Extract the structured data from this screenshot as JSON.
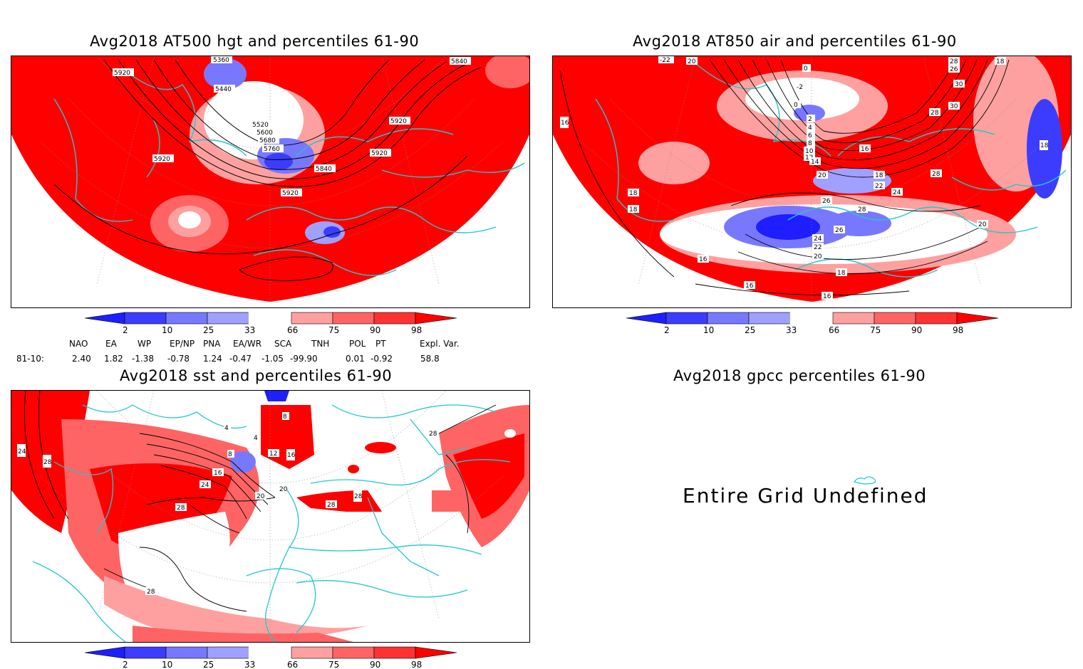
{
  "panels": {
    "hgt": {
      "title": "Avg2018 AT500 hgt and percentiles 61-90",
      "contour_labels": [
        "5360",
        "5920",
        "5440",
        "5520",
        "5600",
        "5680",
        "5760",
        "5920",
        "5920",
        "5840",
        "5920",
        "5840",
        "5920"
      ]
    },
    "air": {
      "title": "Avg2018 AT850 air and percentiles 61-90",
      "contour_labels": [
        "20",
        "-22",
        "0",
        "-2",
        "0",
        "2",
        "4",
        "6",
        "8",
        "10",
        "12",
        "14",
        "16",
        "18",
        "20",
        "22",
        "24",
        "26",
        "28",
        "28",
        "26",
        "24",
        "22",
        "20",
        "18",
        "16",
        "16",
        "16",
        "18",
        "18",
        "16",
        "18",
        "20",
        "28",
        "30",
        "30",
        "26",
        "28",
        "18"
      ]
    },
    "sst": {
      "title": "Avg2018 sst and percentiles 61-90",
      "contour_labels": [
        "24",
        "28",
        "8",
        "4",
        "4",
        "8",
        "12",
        "16",
        "16",
        "20",
        "24",
        "20",
        "28",
        "28",
        "28",
        "28",
        "28"
      ]
    },
    "gpcc": {
      "title": "Avg2018 gpcc percentiles 61-90",
      "message": "Entire Grid Undefined"
    }
  },
  "colorbar": {
    "ticks": [
      "2",
      "10",
      "25",
      "33",
      "66",
      "75",
      "90",
      "98"
    ],
    "colors": [
      "#1e1eff",
      "#3c3cff",
      "#7878ff",
      "#a0a0ff",
      "#ffffff",
      "#ffa0a0",
      "#ff6464",
      "#ff3232",
      "#ff0000"
    ]
  },
  "indices": {
    "headers": [
      "NAO",
      "EA",
      "WP",
      "EP/NP",
      "PNA",
      "EA/WR",
      "SCA",
      "TNH",
      "POL",
      "PT",
      "Expl. Var."
    ],
    "row_label": "81-10:",
    "values": [
      "2.40",
      "1.82",
      "-1.38",
      "-0.78",
      "1.24",
      "-0.47",
      "-1.05",
      "-99.90",
      "0.01",
      "-0.92",
      "58.8"
    ]
  },
  "colors": {
    "red": "#ff0000",
    "coast": "#22c8c8",
    "blue": "#1e1eff"
  }
}
